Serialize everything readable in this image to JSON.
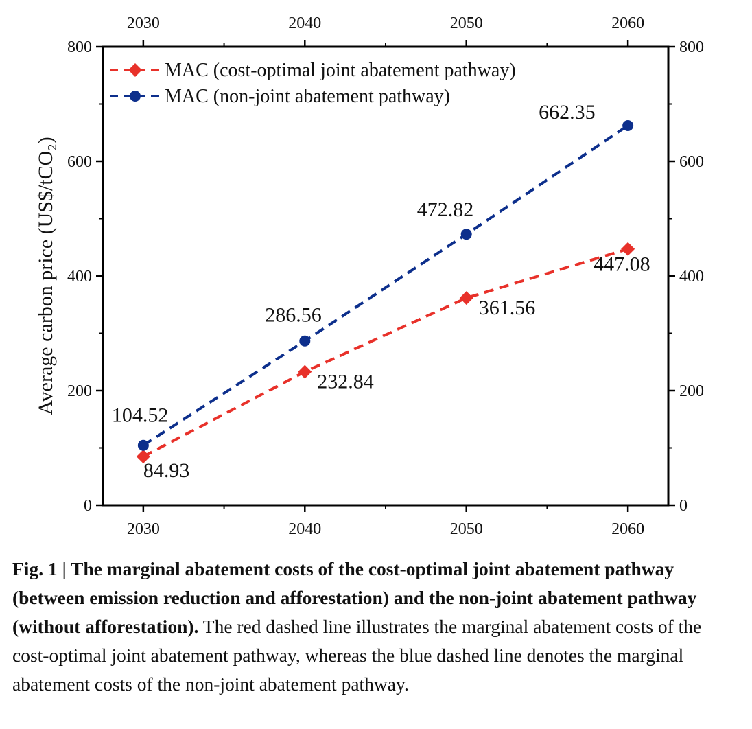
{
  "chart_data": {
    "type": "line",
    "x": [
      2030,
      2040,
      2050,
      2060
    ],
    "xlim": [
      2027.5,
      2062.5
    ],
    "ylim": [
      0,
      800
    ],
    "y_ticks": [
      0,
      200,
      400,
      600,
      800
    ],
    "x_ticks": [
      2030,
      2040,
      2050,
      2060
    ],
    "ylabel": "Average carbon price (US$/tCO₂)",
    "xlabel": "",
    "grid": false,
    "legend_position": "top-left",
    "series": [
      {
        "name": "MAC (cost-optimal joint abatement pathway)",
        "color": "#e8312a",
        "marker": "diamond",
        "line_style": "dashed",
        "values": [
          84.93,
          232.84,
          361.56,
          447.08
        ],
        "labels": [
          "84.93",
          "232.84",
          "361.56",
          "447.08"
        ]
      },
      {
        "name": "MAC (non-joint abatement pathway)",
        "color": "#0d2f8c",
        "marker": "circle",
        "line_style": "dashed",
        "values": [
          104.52,
          286.56,
          472.82,
          662.35
        ],
        "labels": [
          "104.52",
          "286.56",
          "472.82",
          "662.35"
        ]
      }
    ]
  },
  "caption": {
    "bold": "Fig. 1 | The marginal abatement costs of the cost-optimal joint abatement pathway (between emission reduction and afforestation) and the non-joint abatement pathway (without afforestation).",
    "text": " The red dashed line illustrates the marginal abatement costs of the cost-optimal joint abatement pathway, whereas the blue dashed line denotes the marginal abatement costs of the non-joint abatement pathway."
  }
}
